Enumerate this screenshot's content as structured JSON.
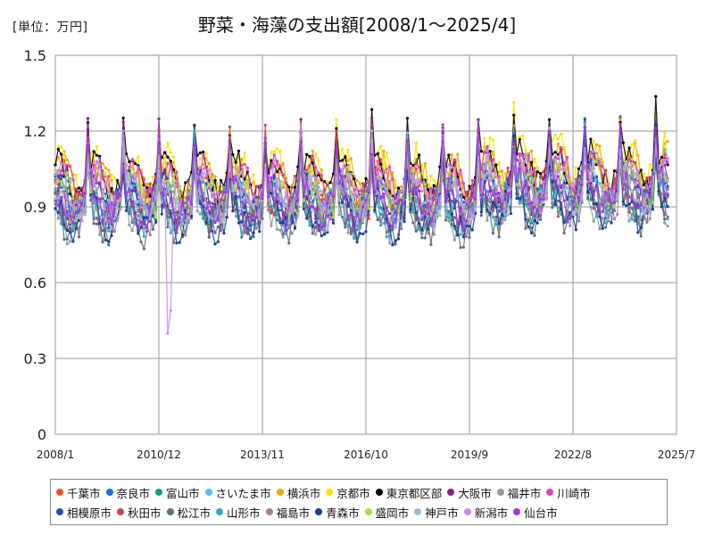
{
  "chart_data": {
    "type": "line",
    "title": "野菜・海藻の支出額[2008/1～2025/4]",
    "unit_label": "[単位：万円]",
    "ylim": [
      0,
      1.5
    ],
    "y_ticks": [
      "0",
      "0.3",
      "0.6",
      "0.9",
      "1.2",
      "1.5"
    ],
    "x_range": [
      "2008/1",
      "2025/7"
    ],
    "x_ticks": [
      "2008/1",
      "2010/12",
      "2013/11",
      "2016/10",
      "2019/9",
      "2022/8",
      "2025/7"
    ],
    "grid": true,
    "legend_position": "bottom",
    "x_start": "2008-01",
    "x_end": "2025-04",
    "series": [
      {
        "name": "千葉市",
        "color": "#F4511E",
        "base": 0.96,
        "amp": 0.07,
        "noise": 0.06,
        "phase": 0.3
      },
      {
        "name": "奈良市",
        "color": "#1E6BE0",
        "base": 0.93,
        "amp": 0.06,
        "noise": 0.06,
        "phase": 1.1
      },
      {
        "name": "富山市",
        "color": "#0E9F73",
        "base": 0.9,
        "amp": 0.06,
        "noise": 0.06,
        "phase": 2.0
      },
      {
        "name": "さいたま市",
        "color": "#5BC0EB",
        "base": 0.97,
        "amp": 0.06,
        "noise": 0.06,
        "phase": 0.7
      },
      {
        "name": "横浜市",
        "color": "#F5A30A",
        "base": 1.0,
        "amp": 0.07,
        "noise": 0.06,
        "phase": 0.1
      },
      {
        "name": "京都市",
        "color": "#F7E600",
        "base": 1.03,
        "amp": 0.07,
        "noise": 0.06,
        "phase": 0.5
      },
      {
        "name": "東京都区部",
        "color": "#000000",
        "base": 1.02,
        "amp": 0.07,
        "noise": 0.05,
        "phase": 0.9
      },
      {
        "name": "大阪市",
        "color": "#8A1E8C",
        "base": 0.94,
        "amp": 0.06,
        "noise": 0.06,
        "phase": 1.6
      },
      {
        "name": "福井市",
        "color": "#8C9AA6",
        "base": 0.87,
        "amp": 0.06,
        "noise": 0.06,
        "phase": 2.4
      },
      {
        "name": "川崎市",
        "color": "#E040C8",
        "base": 0.98,
        "amp": 0.07,
        "noise": 0.06,
        "phase": 0.2
      },
      {
        "name": "相模原市",
        "color": "#1F4FB0",
        "base": 0.93,
        "amp": 0.06,
        "noise": 0.06,
        "phase": 1.3
      },
      {
        "name": "秋田市",
        "color": "#C2475A",
        "base": 0.91,
        "amp": 0.06,
        "noise": 0.06,
        "phase": 2.7
      },
      {
        "name": "松江市",
        "color": "#5E6E78",
        "base": 0.85,
        "amp": 0.06,
        "noise": 0.06,
        "phase": 1.9
      },
      {
        "name": "山形市",
        "color": "#3AA8C4",
        "base": 0.89,
        "amp": 0.06,
        "noise": 0.06,
        "phase": 2.2
      },
      {
        "name": "福島市",
        "color": "#9C8099",
        "base": 0.9,
        "amp": 0.06,
        "noise": 0.06,
        "phase": 0.8
      },
      {
        "name": "青森市",
        "color": "#1A3F8F",
        "base": 0.86,
        "amp": 0.06,
        "noise": 0.06,
        "phase": 1.5
      },
      {
        "name": "盛岡市",
        "color": "#A5E23A",
        "base": 0.95,
        "amp": 0.06,
        "noise": 0.06,
        "phase": 0.4
      },
      {
        "name": "神戸市",
        "color": "#9FB8D8",
        "base": 0.92,
        "amp": 0.06,
        "noise": 0.06,
        "phase": 1.0
      },
      {
        "name": "新潟市",
        "color": "#C98AF0",
        "base": 0.96,
        "amp": 0.07,
        "noise": 0.06,
        "phase": 0.6
      },
      {
        "name": "仙台市",
        "color": "#A236E0",
        "base": 0.92,
        "amp": 0.06,
        "noise": 0.06,
        "phase": 1.8
      }
    ]
  }
}
